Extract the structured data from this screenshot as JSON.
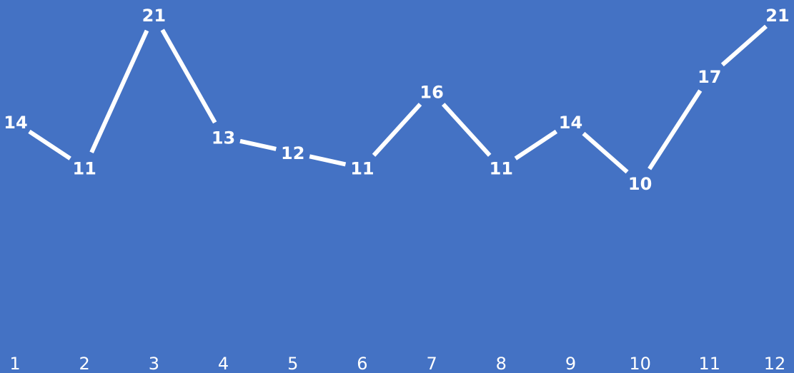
{
  "chart_data": {
    "type": "line",
    "categories": [
      "1",
      "2",
      "3",
      "4",
      "5",
      "6",
      "7",
      "8",
      "9",
      "10",
      "11",
      "12"
    ],
    "series": [
      {
        "values": [
          14,
          11,
          21,
          13,
          12,
          11,
          16,
          11,
          14,
          10,
          17,
          21
        ]
      }
    ],
    "title": "",
    "xlabel": "",
    "ylabel": "",
    "ylim": [
      0,
      22
    ],
    "grid": false,
    "drop_lines": true,
    "data_labels": true,
    "legend": "none"
  },
  "colors": {
    "background": "#4472C4",
    "line": "#FFFFFF",
    "text": "#FFFFFF"
  }
}
